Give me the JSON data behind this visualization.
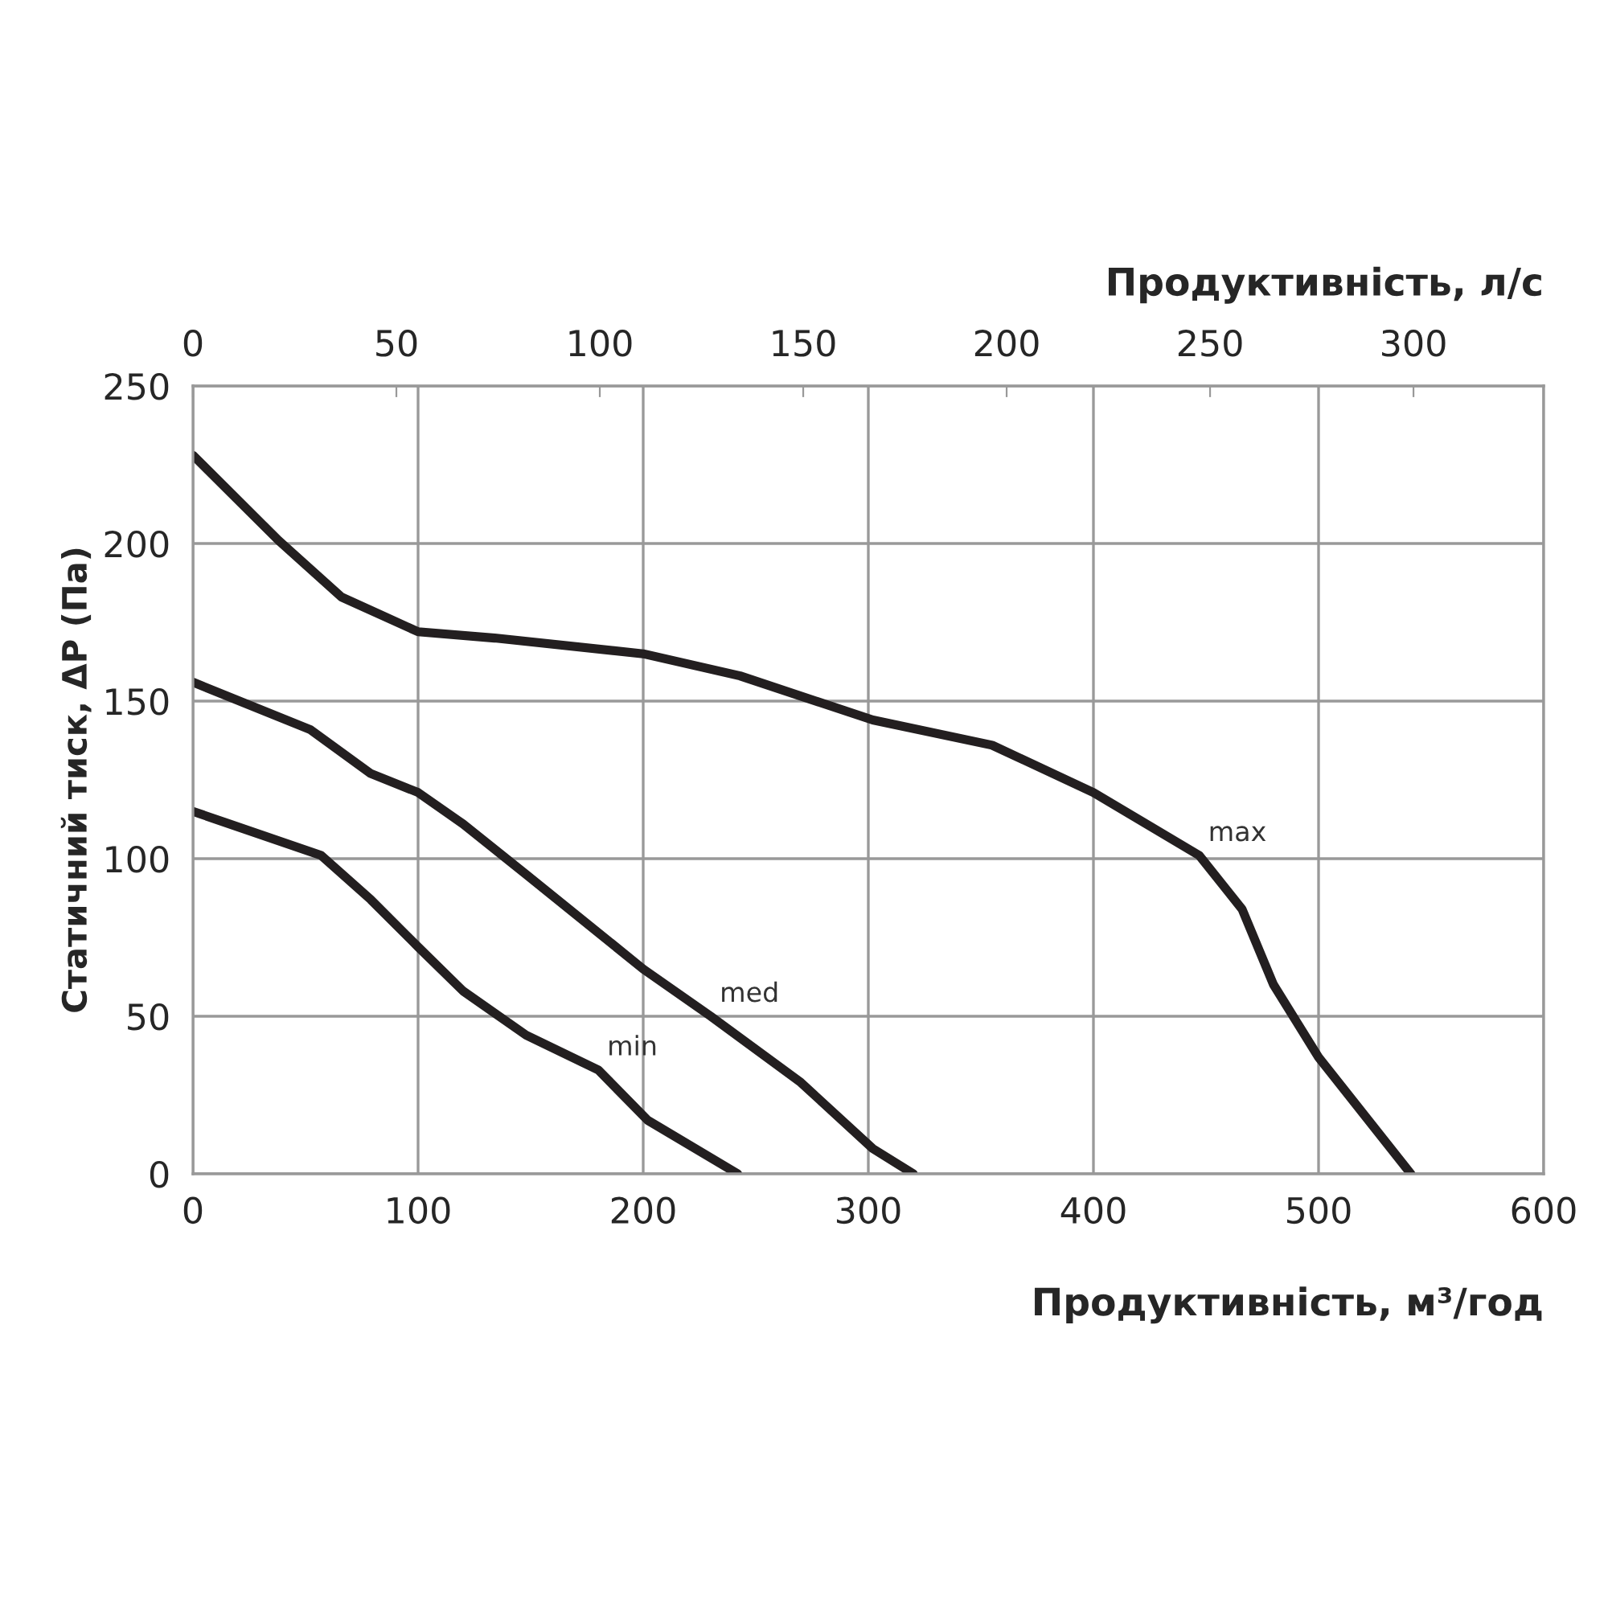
{
  "chart_data": {
    "type": "line",
    "xlabel": "Продуктивність, м³/год",
    "ylabel": "Статичний тиск, ΔP (Па)",
    "x2label": "Продуктивність, л/с",
    "xlim": [
      0,
      600
    ],
    "xticks": [
      0,
      100,
      200,
      300,
      400,
      500,
      600
    ],
    "ylim": [
      0,
      250
    ],
    "yticks": [
      0,
      50,
      100,
      150,
      200,
      250
    ],
    "x2lim": [
      0,
      332
    ],
    "x2ticks": [
      0,
      50,
      100,
      150,
      200,
      250,
      300
    ],
    "grid": true,
    "legend": false,
    "marker": "none",
    "line_style": "solid",
    "series": [
      {
        "name": "max",
        "color": "#231f20",
        "x": [
          0,
          38,
          66,
          100,
          134,
          200,
          243,
          302,
          355,
          400,
          447,
          466,
          480,
          500,
          541
        ],
        "values": [
          228,
          201,
          183,
          172,
          170,
          165,
          158,
          144,
          136,
          121,
          101,
          84,
          60,
          37,
          0
        ]
      },
      {
        "name": "med",
        "color": "#231f20",
        "x": [
          0,
          52,
          79,
          100,
          120,
          148,
          200,
          230,
          270,
          302,
          320
        ],
        "values": [
          156,
          141,
          127,
          121,
          111,
          95,
          65,
          50,
          29,
          8,
          0
        ]
      },
      {
        "name": "min",
        "color": "#231f20",
        "x": [
          0,
          57,
          79,
          100,
          120,
          148,
          180,
          202,
          242
        ],
        "values": [
          115,
          101,
          87,
          72,
          58,
          44,
          33,
          17,
          0
        ]
      }
    ]
  }
}
